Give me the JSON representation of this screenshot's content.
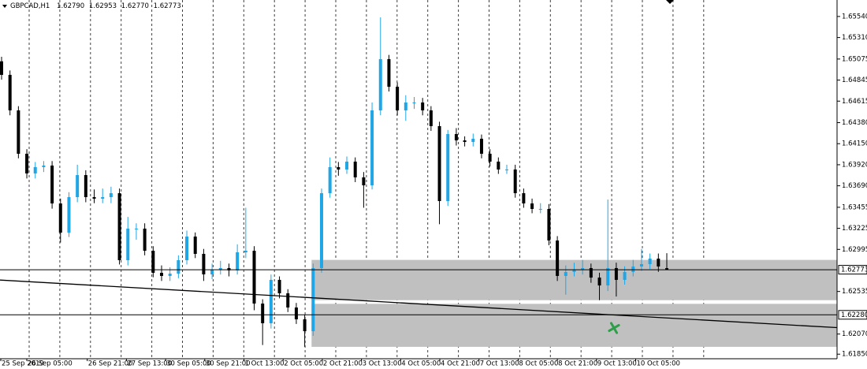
{
  "chart_data": {
    "type": "candlestick",
    "title": "GBPCAD,H1",
    "header_values": [
      "1.62790",
      "1.62953",
      "1.62770",
      "1.62773"
    ],
    "up_color": "#1fa6e6",
    "down_color": "#000000",
    "categories": [
      "25 Sep 2019",
      "26 Sep 05:00",
      "26 Sep 21:00",
      "27 Sep 13:00",
      "30 Sep 05:00",
      "30 Sep 21:00",
      "1 Oct 13:00",
      "2 Oct 05:00",
      "2 Oct 21:00",
      "3 Oct 13:00",
      "4 Oct 05:00",
      "4 Oct 21:00",
      "7 Oct 13:00",
      "8 Oct 05:00",
      "8 Oct 21:00",
      "9 Oct 13:00",
      "10 Oct 05:00"
    ],
    "open": [
      1.6505,
      1.64902,
      1.64514,
      1.6404,
      1.63825,
      1.63894,
      1.63911,
      1.63497,
      1.63178,
      1.63566,
      1.63807,
      1.63566,
      1.63549,
      1.63566,
      1.63609,
      1.62877,
      1.63222,
      1.63222,
      1.6298,
      1.62739,
      1.62705,
      1.6273,
      1.62877,
      1.63135,
      1.62946,
      1.62722,
      1.62774,
      1.62791,
      1.62765,
      1.62963,
      1.6298,
      1.62403,
      1.62188,
      1.62662,
      1.62515,
      1.6236,
      1.62231,
      1.62101,
      1.62791,
      1.63609,
      1.63894,
      1.63868,
      1.63954,
      1.63782,
      1.63695,
      1.64514,
      1.65074,
      1.64772,
      1.64514,
      1.646,
      1.646,
      1.64514,
      1.64342,
      1.63523,
      1.64255,
      1.64186,
      1.64169,
      1.64204,
      1.6404,
      1.63954,
      1.63868,
      1.63868,
      1.63609,
      1.63497,
      1.63437,
      1.63437,
      1.63092,
      1.62705,
      1.62748,
      1.62774,
      1.62791,
      1.62687,
      1.62601,
      1.62791,
      1.62662,
      1.62748,
      1.62808,
      1.62834,
      1.62894,
      1.6279
    ],
    "high": [
      1.651,
      1.6495,
      1.6456,
      1.6409,
      1.6395,
      1.6396,
      1.6396,
      1.6355,
      1.6362,
      1.6392,
      1.6386,
      1.6365,
      1.6366,
      1.6368,
      1.6366,
      1.6335,
      1.6328,
      1.6328,
      1.6303,
      1.6282,
      1.628,
      1.6293,
      1.632,
      1.6318,
      1.63,
      1.6284,
      1.6287,
      1.6284,
      1.6305,
      1.6345,
      1.6303,
      1.6245,
      1.6272,
      1.627,
      1.6256,
      1.6241,
      1.6228,
      1.6284,
      1.6366,
      1.64,
      1.6395,
      1.6401,
      1.64,
      1.6384,
      1.646,
      1.6553,
      1.6512,
      1.6482,
      1.6468,
      1.6466,
      1.6465,
      1.6456,
      1.6439,
      1.643,
      1.6432,
      1.6423,
      1.6426,
      1.6425,
      1.6409,
      1.64,
      1.6392,
      1.6392,
      1.6366,
      1.6355,
      1.635,
      1.6349,
      1.6314,
      1.6282,
      1.6285,
      1.6288,
      1.6284,
      1.6274,
      1.6354,
      1.6285,
      1.6281,
      1.6288,
      1.63,
      1.6295,
      1.6295,
      1.62953
    ],
    "low": [
      1.6485,
      1.6446,
      1.6399,
      1.6377,
      1.6377,
      1.6384,
      1.6344,
      1.6307,
      1.6313,
      1.6351,
      1.6351,
      1.635,
      1.635,
      1.635,
      1.6283,
      1.6282,
      1.631,
      1.6293,
      1.6269,
      1.6265,
      1.6265,
      1.6268,
      1.6283,
      1.629,
      1.6265,
      1.6267,
      1.6272,
      1.627,
      1.6272,
      1.629,
      1.6233,
      1.6195,
      1.6213,
      1.6246,
      1.6231,
      1.6218,
      1.6193,
      1.6205,
      1.6274,
      1.6356,
      1.638,
      1.6382,
      1.6373,
      1.6345,
      1.6365,
      1.6446,
      1.6472,
      1.6446,
      1.644,
      1.6453,
      1.6446,
      1.6429,
      1.6327,
      1.6347,
      1.6413,
      1.6412,
      1.6412,
      1.6399,
      1.639,
      1.6382,
      1.6382,
      1.6356,
      1.6345,
      1.6339,
      1.6339,
      1.6304,
      1.6265,
      1.625,
      1.627,
      1.6272,
      1.6263,
      1.6244,
      1.6254,
      1.6248,
      1.6261,
      1.627,
      1.6276,
      1.6278,
      1.6275,
      1.6277
    ],
    "close": [
      1.64902,
      1.64514,
      1.6404,
      1.63825,
      1.63894,
      1.63911,
      1.63497,
      1.63178,
      1.63566,
      1.63807,
      1.63566,
      1.63549,
      1.63566,
      1.63609,
      1.62877,
      1.63222,
      1.63222,
      1.6298,
      1.62739,
      1.62705,
      1.6273,
      1.62877,
      1.63135,
      1.62946,
      1.62722,
      1.62774,
      1.62791,
      1.62765,
      1.62963,
      1.6298,
      1.62403,
      1.62188,
      1.62662,
      1.62515,
      1.6236,
      1.62231,
      1.62101,
      1.62791,
      1.63609,
      1.63894,
      1.63868,
      1.63954,
      1.63782,
      1.63695,
      1.64514,
      1.65074,
      1.64772,
      1.64514,
      1.646,
      1.646,
      1.64514,
      1.64342,
      1.63523,
      1.64255,
      1.64186,
      1.64169,
      1.64204,
      1.6404,
      1.63954,
      1.63868,
      1.63868,
      1.63609,
      1.63497,
      1.63437,
      1.63437,
      1.63092,
      1.62705,
      1.62748,
      1.62774,
      1.62791,
      1.62687,
      1.62601,
      1.62791,
      1.62662,
      1.62748,
      1.62808,
      1.62834,
      1.62894,
      1.62808,
      1.62773
    ],
    "ylim": [
      1.618,
      1.6572
    ],
    "yticks": [
      {
        "value": 1.6554,
        "label": "1.65540"
      },
      {
        "value": 1.6531,
        "label": "1.65310"
      },
      {
        "value": 1.65075,
        "label": "1.65075"
      },
      {
        "value": 1.64845,
        "label": "1.64845"
      },
      {
        "value": 1.64615,
        "label": "1.64615"
      },
      {
        "value": 1.6438,
        "label": "1.64380"
      },
      {
        "value": 1.6415,
        "label": "1.64150"
      },
      {
        "value": 1.6392,
        "label": "1.63920"
      },
      {
        "value": 1.6369,
        "label": "1.63690"
      },
      {
        "value": 1.63455,
        "label": "1.63455"
      },
      {
        "value": 1.63225,
        "label": "1.63225"
      },
      {
        "value": 1.62995,
        "label": "1.62995"
      },
      {
        "value": 1.62535,
        "label": "1.62535"
      },
      {
        "value": 1.6207,
        "label": "1.62070"
      },
      {
        "value": 1.6185,
        "label": "1.61850"
      }
    ],
    "levels": [
      {
        "value": 1.62773,
        "label": "1.62773"
      },
      {
        "value": 1.6228,
        "label": "1.62280"
      }
    ],
    "zones": [
      {
        "low": 1.6244,
        "high": 1.6288
      },
      {
        "low": 1.6193,
        "high": 1.624
      }
    ],
    "trendline": {
      "start": 1.6266,
      "end": 1.6214
    }
  }
}
